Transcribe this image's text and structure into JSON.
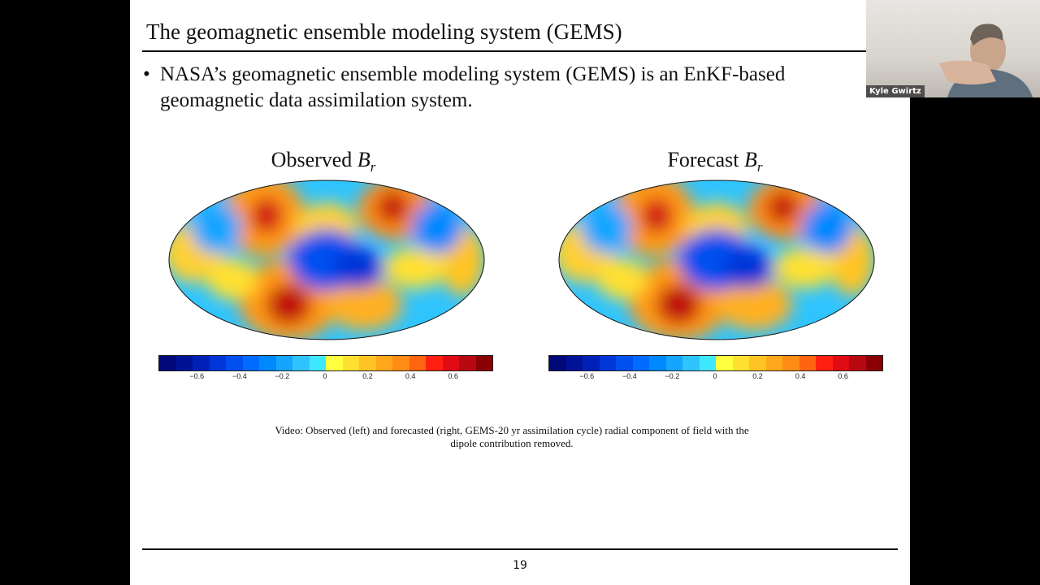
{
  "slide": {
    "title": "The geomagnetic ensemble modeling system (GEMS)",
    "bullet": "NASA’s geomagnetic ensemble modeling system (GEMS) is an EnKF-based geomagnetic data assimilation system.",
    "panels": [
      {
        "title_prefix": "Observed ",
        "symbol": "B",
        "subscript": "r"
      },
      {
        "title_prefix": "Forecast ",
        "symbol": "B",
        "subscript": "r"
      }
    ],
    "colorbar": {
      "ticks": [
        "−0.6",
        "−0.4",
        "−0.2",
        "0",
        "0.2",
        "0.4",
        "0.6"
      ],
      "tick_values": [
        -0.6,
        -0.4,
        -0.2,
        0,
        0.2,
        0.4,
        0.6
      ],
      "range": [
        -0.78,
        0.78
      ],
      "colors": [
        "#00087a",
        "#001296",
        "#0020b8",
        "#0036d8",
        "#0050f0",
        "#006cff",
        "#0088ff",
        "#14a6ff",
        "#30c4ff",
        "#40e8ff",
        "#ffff40",
        "#ffe030",
        "#ffc424",
        "#ffa81c",
        "#ff8c14",
        "#ff6410",
        "#ff2010",
        "#e00c14",
        "#b80810",
        "#8a0004"
      ]
    },
    "caption_line1": "Video: Observed (left) and forecasted (right, GEMS-20 yr assimilation cycle) radial component of field with the",
    "caption_line2": "dipole contribution removed.",
    "page_number": "19"
  },
  "webcam": {
    "participant_name": "Kyle Gwirtz"
  }
}
